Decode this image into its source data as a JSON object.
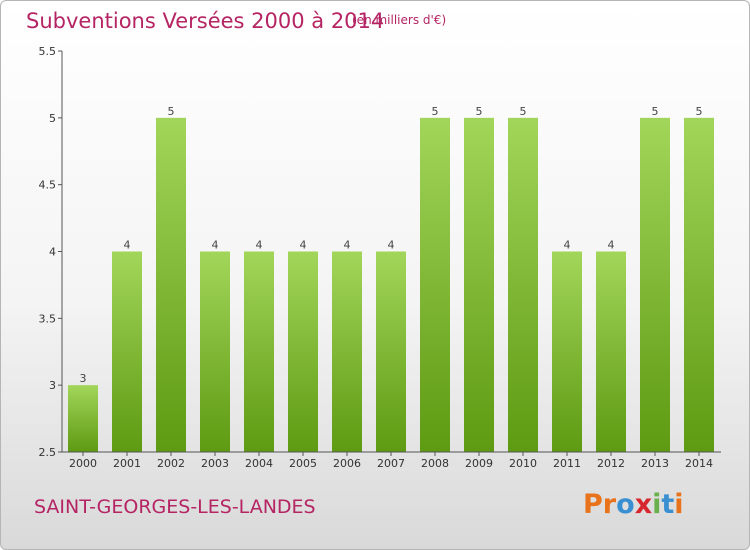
{
  "header": {
    "title": "Subventions Versées 2000 à 2014",
    "unit": "(en milliers d'€)"
  },
  "footer": {
    "commune": "SAINT-GEORGES-LES-LANDES",
    "logo_text": "Proxiti",
    "logo_colors": [
      "#e8731a",
      "#e8731a",
      "#3a8fd0",
      "#d7262e",
      "#6ab04c",
      "#3a8fd0",
      "#e8731a"
    ]
  },
  "colors": {
    "bar_top": "#a2d65a",
    "bar_bottom": "#5e9a12",
    "text_accent": "#b52463",
    "axis": "#555555"
  },
  "chart_data": {
    "type": "bar",
    "title": "Subventions Versées 2000 à 2014",
    "categories": [
      "2000",
      "2001",
      "2002",
      "2003",
      "2004",
      "2005",
      "2006",
      "2007",
      "2008",
      "2009",
      "2010",
      "2011",
      "2012",
      "2013",
      "2014"
    ],
    "values": [
      3,
      4,
      5,
      4,
      4,
      4,
      4,
      4,
      5,
      5,
      5,
      4,
      4,
      5,
      5
    ],
    "data_labels": [
      "3",
      "4",
      "5",
      "4",
      "4",
      "4",
      "4",
      "4",
      "5",
      "5",
      "5",
      "4",
      "4",
      "5",
      "5"
    ],
    "ylim": [
      2.5,
      5.5
    ],
    "yticks": [
      2.5,
      3,
      3.5,
      4,
      4.5,
      5,
      5.5
    ],
    "ytick_labels": [
      "2.5",
      "3",
      "3.5",
      "4",
      "4.5",
      "5",
      "5.5"
    ],
    "xlabel": "",
    "ylabel": "",
    "grid": false,
    "legend": "none"
  }
}
